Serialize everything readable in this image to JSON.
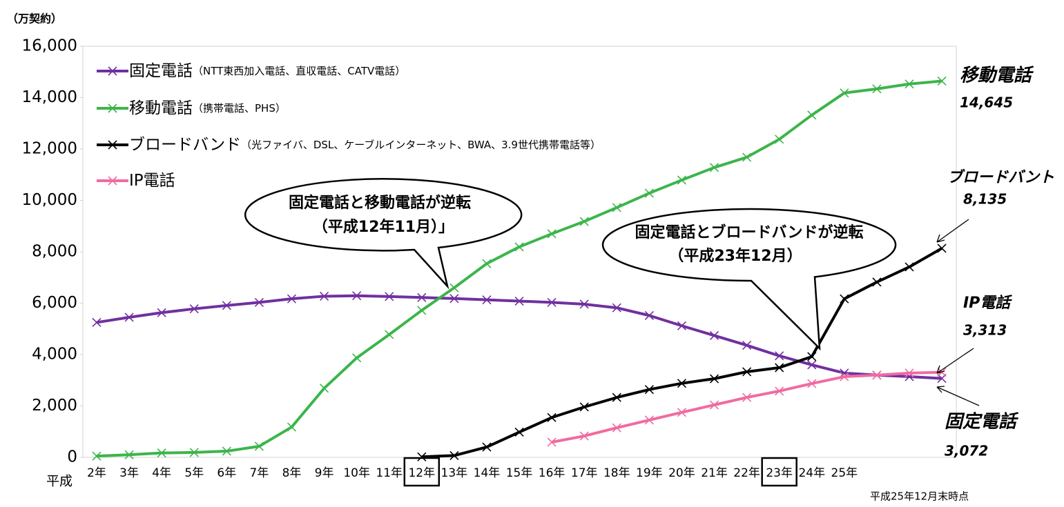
{
  "chart_data": {
    "type": "line",
    "y_unit": "（万契約）",
    "x_prefix": "平成",
    "footnote": "平成25年12月末時点",
    "categories": [
      "2年",
      "3年",
      "4年",
      "5年",
      "6年",
      "7年",
      "8年",
      "9年",
      "10年",
      "11年",
      "12年",
      "13年",
      "14年",
      "15年",
      "16年",
      "17年",
      "18年",
      "19年",
      "20年",
      "21年",
      "22年",
      "23年",
      "24年",
      "25年",
      null,
      null,
      null
    ],
    "boxed_categories": [
      "12年",
      "23年"
    ],
    "ylim": [
      0,
      16000
    ],
    "yticks": [
      0,
      {
        "value": 2000,
        "label": "2,000"
      },
      {
        "value": 4000,
        "label": "4,000"
      },
      {
        "value": 6000,
        "label": "6,000"
      },
      {
        "value": 8000,
        "label": "8,000"
      },
      {
        "value": 10000,
        "label": "10,000"
      },
      {
        "value": 12000,
        "label": "12,000"
      },
      {
        "value": 14000,
        "label": "14,000"
      },
      {
        "value": 16000,
        "label": "16,000"
      }
    ],
    "grid": false,
    "series": [
      {
        "name": "固定電話",
        "note": "（NTT東西加入電話、直収電話、CATV電話）",
        "end_name": "固定電話",
        "color": "#7030a0",
        "values": [
          5250,
          5450,
          5630,
          5780,
          5910,
          6030,
          6170,
          6270,
          6290,
          6260,
          6220,
          6180,
          6130,
          6080,
          6030,
          5960,
          5820,
          5520,
          5120,
          4740,
          4360,
          3950,
          3600,
          3280,
          3200,
          3140,
          3072
        ],
        "value_labels": [
          null,
          null,
          null,
          null,
          null,
          null,
          null,
          null,
          null,
          null,
          null,
          null,
          null,
          null,
          null,
          null,
          null,
          null,
          null,
          null,
          null,
          null,
          null,
          null,
          null,
          null,
          "3,072"
        ]
      },
      {
        "name": "移動電話",
        "note": "（携帯電話、PHS）",
        "end_name": "移動電話",
        "color": "#3cb54a",
        "values": [
          50,
          100,
          170,
          190,
          240,
          430,
          1180,
          2690,
          3870,
          4780,
          5720,
          6600,
          7540,
          8190,
          8700,
          9180,
          9720,
          10280,
          10790,
          11280,
          11680,
          12380,
          13320,
          14180,
          14340,
          14530,
          14645
        ],
        "value_labels": [
          null,
          null,
          null,
          null,
          null,
          null,
          null,
          null,
          null,
          null,
          null,
          null,
          null,
          null,
          null,
          null,
          null,
          null,
          null,
          null,
          null,
          null,
          null,
          null,
          null,
          null,
          "14,645"
        ]
      },
      {
        "name": "ブロードバンド",
        "note": "（光ファイバ、DSL、ケーブルインターネット、BWA、3.9世代携帯電話等）",
        "end_name": "ブロードバント",
        "color": "#000000",
        "values": [
          null,
          null,
          null,
          null,
          null,
          null,
          null,
          null,
          null,
          null,
          20,
          70,
          400,
          980,
          1550,
          1960,
          2330,
          2640,
          2880,
          3060,
          3330,
          3490,
          3920,
          6170,
          6820,
          7410,
          8135
        ],
        "value_labels": [
          null,
          null,
          null,
          null,
          null,
          null,
          null,
          null,
          null,
          null,
          null,
          null,
          null,
          null,
          null,
          null,
          null,
          null,
          null,
          null,
          null,
          null,
          null,
          null,
          null,
          null,
          "8,135"
        ]
      },
      {
        "name": "IP電話",
        "end_name": "IP電話",
        "color": "#f06ba0",
        "values": [
          null,
          null,
          null,
          null,
          null,
          null,
          null,
          null,
          null,
          null,
          null,
          null,
          null,
          null,
          590,
          830,
          1150,
          1450,
          1750,
          2040,
          2330,
          2580,
          2870,
          3140,
          3200,
          3280,
          3313
        ],
        "value_labels": [
          null,
          null,
          null,
          null,
          null,
          null,
          null,
          null,
          null,
          null,
          null,
          null,
          null,
          null,
          null,
          null,
          null,
          null,
          null,
          null,
          null,
          null,
          null,
          null,
          null,
          null,
          "3,313"
        ]
      }
    ],
    "annotations": [
      {
        "lines": [
          "固定電話と移動電話が逆転",
          "（平成12年11月）」"
        ]
      },
      {
        "lines": [
          "固定電話とブロードバンドが逆転",
          "（平成23年12月）"
        ]
      }
    ]
  }
}
